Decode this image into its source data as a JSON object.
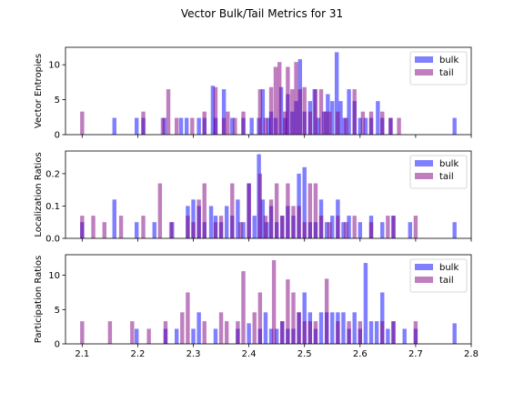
{
  "chart_data": {
    "type": "bar",
    "title": "Vector Bulk/Tail Metrics for 31",
    "xlim": [
      2.07,
      2.8
    ],
    "xticks": [
      2.1,
      2.2,
      2.3,
      2.4,
      2.5,
      2.6,
      2.7,
      2.8
    ],
    "xtick_labels": [
      "2.1",
      "2.2",
      "2.3",
      "2.4",
      "2.5",
      "2.6",
      "2.7",
      "2.8"
    ],
    "bin_width": 0.0072,
    "legend": {
      "placement": "top-right",
      "entries": [
        "bulk",
        "tail"
      ]
    },
    "colors": {
      "bulk": "#0000ff",
      "tail": "#800080"
    },
    "alpha": 0.5,
    "panels": [
      {
        "ylabel": "Vector Entropies",
        "ylim": [
          0,
          12.5
        ],
        "yticks": [
          0,
          5,
          10
        ],
        "ytick_labels": [
          "0",
          "5",
          "10"
        ],
        "series": [
          {
            "name": "bulk",
            "x": [
              2.158,
              2.198,
              2.21,
              2.248,
              2.278,
              2.288,
              2.31,
              2.32,
              2.335,
              2.34,
              2.355,
              2.37,
              2.39,
              2.405,
              2.418,
              2.425,
              2.435,
              2.44,
              2.448,
              2.458,
              2.465,
              2.47,
              2.478,
              2.485,
              2.492,
              2.5,
              2.51,
              2.518,
              2.525,
              2.535,
              2.542,
              2.55,
              2.558,
              2.565,
              2.572,
              2.58,
              2.59,
              2.6,
              2.61,
              2.62,
              2.632,
              2.64,
              2.655,
              2.77
            ],
            "values": [
              2.4,
              2.4,
              2.4,
              2.4,
              2.4,
              2.4,
              2.4,
              2.4,
              7.0,
              2.4,
              6.5,
              2.4,
              2.4,
              2.4,
              2.4,
              6.5,
              2.4,
              3.3,
              2.4,
              6.8,
              2.4,
              5.8,
              3.3,
              4.8,
              10.8,
              3.3,
              4.8,
              6.5,
              2.4,
              3.3,
              5.8,
              4.8,
              11.8,
              4.8,
              2.4,
              6.5,
              4.8,
              2.4,
              2.4,
              2.4,
              4.8,
              2.4,
              2.4,
              2.4
            ]
          },
          {
            "name": "tail",
            "x": [
              2.1,
              2.21,
              2.245,
              2.255,
              2.27,
              2.298,
              2.32,
              2.34,
              2.355,
              2.362,
              2.375,
              2.39,
              2.42,
              2.43,
              2.44,
              2.448,
              2.455,
              2.465,
              2.47,
              2.478,
              2.485,
              2.492,
              2.5,
              2.51,
              2.52,
              2.53,
              2.538,
              2.545,
              2.56,
              2.575,
              2.59,
              2.605,
              2.62,
              2.64,
              2.655,
              2.67
            ],
            "values": [
              3.3,
              3.3,
              2.4,
              6.5,
              2.4,
              2.4,
              3.3,
              6.8,
              2.4,
              3.3,
              2.4,
              3.3,
              6.5,
              2.4,
              6.8,
              9.7,
              10.4,
              3.3,
              9.7,
              6.5,
              10.4,
              6.5,
              6.8,
              3.3,
              6.5,
              6.5,
              3.3,
              3.3,
              3.3,
              2.4,
              6.5,
              3.3,
              3.3,
              3.3,
              2.4,
              2.4
            ]
          }
        ]
      },
      {
        "ylabel": "Localization Ratios",
        "ylim": [
          0,
          0.27
        ],
        "yticks": [
          0.0,
          0.1,
          0.2
        ],
        "ytick_labels": [
          "0.0",
          "0.1",
          "0.2"
        ],
        "series": [
          {
            "name": "bulk",
            "x": [
              2.1,
              2.158,
              2.198,
              2.23,
              2.262,
              2.29,
              2.3,
              2.31,
              2.32,
              2.332,
              2.34,
              2.35,
              2.36,
              2.37,
              2.38,
              2.39,
              2.4,
              2.41,
              2.418,
              2.425,
              2.432,
              2.44,
              2.45,
              2.46,
              2.47,
              2.48,
              2.49,
              2.5,
              2.51,
              2.52,
              2.53,
              2.54,
              2.55,
              2.56,
              2.57,
              2.58,
              2.6,
              2.62,
              2.64,
              2.66,
              2.69,
              2.77
            ],
            "values": [
              0.05,
              0.12,
              0.05,
              0.05,
              0.05,
              0.1,
              0.12,
              0.1,
              0.05,
              0.1,
              0.07,
              0.05,
              0.1,
              0.07,
              0.12,
              0.05,
              0.17,
              0.07,
              0.26,
              0.12,
              0.05,
              0.1,
              0.05,
              0.07,
              0.1,
              0.07,
              0.2,
              0.22,
              0.05,
              0.05,
              0.12,
              0.05,
              0.07,
              0.12,
              0.05,
              0.07,
              0.05,
              0.07,
              0.05,
              0.07,
              0.05,
              0.05
            ]
          },
          {
            "name": "tail",
            "x": [
              2.1,
              2.12,
              2.14,
              2.17,
              2.21,
              2.24,
              2.26,
              2.29,
              2.3,
              2.31,
              2.32,
              2.34,
              2.35,
              2.37,
              2.385,
              2.4,
              2.42,
              2.43,
              2.44,
              2.45,
              2.46,
              2.47,
              2.48,
              2.49,
              2.5,
              2.51,
              2.52,
              2.53,
              2.545,
              2.56,
              2.575,
              2.59,
              2.62,
              2.65,
              2.66,
              2.7
            ],
            "values": [
              0.07,
              0.07,
              0.05,
              0.07,
              0.07,
              0.17,
              0.05,
              0.07,
              0.05,
              0.12,
              0.17,
              0.05,
              0.07,
              0.17,
              0.05,
              0.17,
              0.2,
              0.07,
              0.12,
              0.17,
              0.07,
              0.17,
              0.1,
              0.1,
              0.05,
              0.17,
              0.17,
              0.07,
              0.05,
              0.07,
              0.05,
              0.07,
              0.05,
              0.07,
              0.07,
              0.07
            ]
          }
        ]
      },
      {
        "ylabel": "Participation Ratios",
        "ylim": [
          0,
          13
        ],
        "yticks": [
          0,
          5,
          10
        ],
        "ytick_labels": [
          "0",
          "5",
          "10"
        ],
        "series": [
          {
            "name": "bulk",
            "x": [
              2.198,
              2.25,
              2.27,
              2.3,
              2.31,
              2.34,
              2.38,
              2.4,
              2.42,
              2.43,
              2.44,
              2.45,
              2.46,
              2.47,
              2.48,
              2.49,
              2.5,
              2.51,
              2.52,
              2.53,
              2.54,
              2.55,
              2.56,
              2.57,
              2.58,
              2.59,
              2.6,
              2.61,
              2.62,
              2.63,
              2.64,
              2.65,
              2.66,
              2.68,
              2.7,
              2.77
            ],
            "values": [
              2.2,
              2.2,
              2.2,
              2.2,
              4.6,
              2.2,
              2.2,
              3.0,
              2.2,
              4.6,
              2.2,
              2.2,
              3.3,
              2.2,
              2.2,
              4.6,
              7.5,
              4.6,
              2.2,
              4.6,
              4.6,
              4.6,
              4.6,
              4.6,
              2.2,
              4.6,
              2.2,
              11.8,
              3.3,
              3.3,
              7.5,
              2.2,
              3.3,
              2.2,
              2.2,
              3.0
            ]
          },
          {
            "name": "tail",
            "x": [
              2.1,
              2.15,
              2.19,
              2.22,
              2.25,
              2.28,
              2.29,
              2.32,
              2.35,
              2.36,
              2.38,
              2.39,
              2.41,
              2.42,
              2.445,
              2.46,
              2.47,
              2.48,
              2.49,
              2.5,
              2.51,
              2.52,
              2.54,
              2.56,
              2.58,
              2.6,
              2.64,
              2.66,
              2.7
            ],
            "values": [
              3.3,
              3.3,
              3.3,
              2.2,
              3.3,
              4.6,
              7.5,
              3.3,
              4.6,
              3.3,
              3.3,
              10.6,
              4.6,
              7.5,
              12.2,
              3.3,
              9.4,
              7.5,
              4.6,
              3.3,
              3.3,
              3.3,
              9.5,
              3.3,
              3.3,
              3.3,
              3.3,
              3.3,
              3.3
            ]
          }
        ]
      }
    ]
  }
}
